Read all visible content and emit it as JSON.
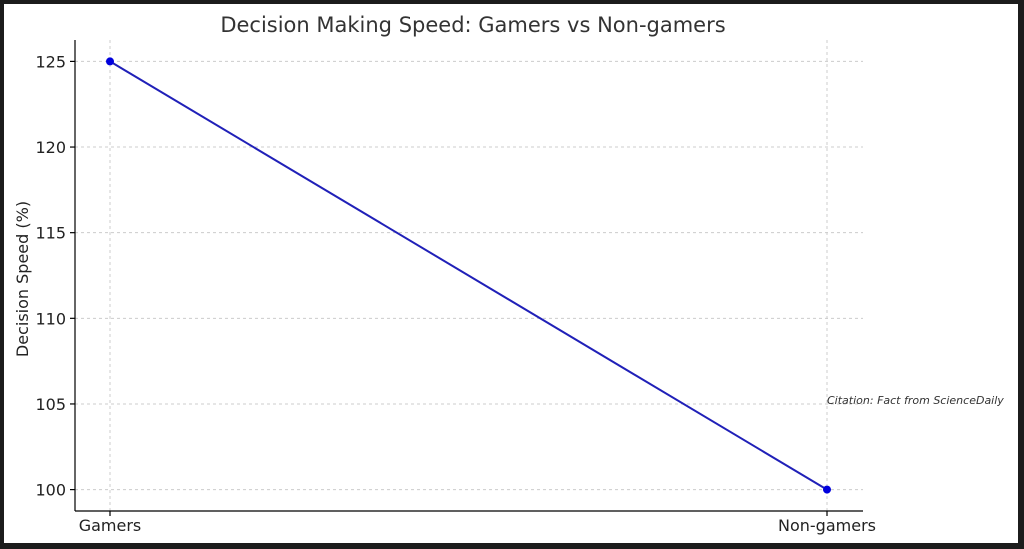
{
  "chart_data": {
    "type": "line",
    "title": "Decision Making Speed: Gamers vs Non-gamers",
    "xlabel": "",
    "ylabel": "Decision Speed (%)",
    "categories": [
      "Gamers",
      "Non-gamers"
    ],
    "series": [
      {
        "values": [
          125,
          100
        ],
        "color": "#2020b8",
        "marker_color": "#0000dd"
      }
    ],
    "yticks": [
      100,
      105,
      110,
      115,
      120,
      125
    ],
    "ylim": [
      98.75,
      126.25
    ],
    "grid": true,
    "annotation": "Citation: Fact from ScienceDaily"
  }
}
